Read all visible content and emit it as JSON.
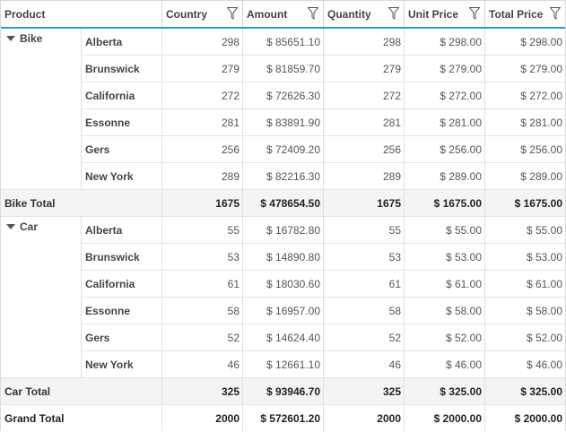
{
  "columns": {
    "product": "Product",
    "country": "Country",
    "amount": "Amount",
    "quantity": "Quantity",
    "unit_price": "Unit Price",
    "total_price": "Total Price"
  },
  "groups": [
    {
      "name": "Bike",
      "rows": [
        {
          "region": "Alberta",
          "country": "298",
          "amount": "$ 85651.10",
          "quantity": "298",
          "unit_price": "$ 298.00",
          "total_price": "$ 298.00"
        },
        {
          "region": "Brunswick",
          "country": "279",
          "amount": "$ 81859.70",
          "quantity": "279",
          "unit_price": "$ 279.00",
          "total_price": "$ 279.00"
        },
        {
          "region": "California",
          "country": "272",
          "amount": "$ 72626.30",
          "quantity": "272",
          "unit_price": "$ 272.00",
          "total_price": "$ 272.00"
        },
        {
          "region": "Essonne",
          "country": "281",
          "amount": "$ 83891.90",
          "quantity": "281",
          "unit_price": "$ 281.00",
          "total_price": "$ 281.00"
        },
        {
          "region": "Gers",
          "country": "256",
          "amount": "$ 72409.20",
          "quantity": "256",
          "unit_price": "$ 256.00",
          "total_price": "$ 256.00"
        },
        {
          "region": "New York",
          "country": "289",
          "amount": "$ 82216.30",
          "quantity": "289",
          "unit_price": "$ 289.00",
          "total_price": "$ 289.00"
        }
      ],
      "total": {
        "label": "Bike Total",
        "country": "1675",
        "amount": "$ 478654.50",
        "quantity": "1675",
        "unit_price": "$ 1675.00",
        "total_price": "$ 1675.00"
      }
    },
    {
      "name": "Car",
      "rows": [
        {
          "region": "Alberta",
          "country": "55",
          "amount": "$ 16782.80",
          "quantity": "55",
          "unit_price": "$ 55.00",
          "total_price": "$ 55.00"
        },
        {
          "region": "Brunswick",
          "country": "53",
          "amount": "$ 14890.80",
          "quantity": "53",
          "unit_price": "$ 53.00",
          "total_price": "$ 53.00"
        },
        {
          "region": "California",
          "country": "61",
          "amount": "$ 18030.60",
          "quantity": "61",
          "unit_price": "$ 61.00",
          "total_price": "$ 61.00"
        },
        {
          "region": "Essonne",
          "country": "58",
          "amount": "$ 16957.00",
          "quantity": "58",
          "unit_price": "$ 58.00",
          "total_price": "$ 58.00"
        },
        {
          "region": "Gers",
          "country": "52",
          "amount": "$ 14624.40",
          "quantity": "52",
          "unit_price": "$ 52.00",
          "total_price": "$ 52.00"
        },
        {
          "region": "New York",
          "country": "46",
          "amount": "$ 12661.10",
          "quantity": "46",
          "unit_price": "$ 46.00",
          "total_price": "$ 46.00"
        }
      ],
      "total": {
        "label": "Car Total",
        "country": "325",
        "amount": "$ 93946.70",
        "quantity": "325",
        "unit_price": "$ 325.00",
        "total_price": "$ 325.00"
      }
    }
  ],
  "grand_total": {
    "label": "Grand Total",
    "country": "2000",
    "amount": "$ 572601.20",
    "quantity": "2000",
    "unit_price": "$ 2000.00",
    "total_price": "$ 2000.00"
  },
  "icons": {
    "filter": "filter-icon",
    "expander": "collapse-caret-icon"
  },
  "colors": {
    "header_accent": "#2e9bd6",
    "total_row_bg": "#f3f5f5"
  }
}
